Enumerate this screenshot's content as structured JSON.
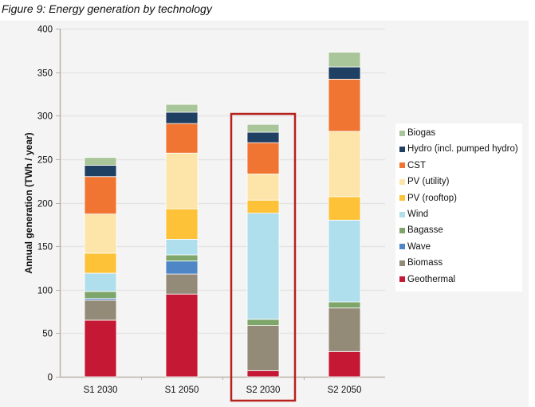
{
  "figure_title": "Figure 9: Energy generation by technology",
  "chart_data": {
    "type": "bar",
    "stacked": true,
    "title": "Figure 9: Energy generation by technology",
    "xlabel": "",
    "ylabel": "Annual generation (TWh / year)",
    "ylim": [
      0,
      400
    ],
    "yticks": [
      0,
      50,
      100,
      150,
      200,
      250,
      300,
      350,
      400
    ],
    "grid": true,
    "legend_position": "right",
    "categories": [
      "S1 2030",
      "S1 2050",
      "S2 2030",
      "S2 2050"
    ],
    "highlighted_category": "S2 2030",
    "highlight_color": "#b5221c",
    "series": [
      {
        "name": "Geothermal",
        "color": "#c41834",
        "values": [
          65,
          95,
          7,
          29
        ]
      },
      {
        "name": "Biomass",
        "color": "#948a78",
        "values": [
          23,
          23,
          52,
          50
        ]
      },
      {
        "name": "Wave",
        "color": "#4f87c6",
        "values": [
          2,
          15,
          0,
          0
        ]
      },
      {
        "name": "Bagasse",
        "color": "#7ea66a",
        "values": [
          8,
          7,
          7,
          7
        ]
      },
      {
        "name": "Wind",
        "color": "#afdeed",
        "values": [
          21,
          18,
          122,
          94
        ]
      },
      {
        "name": "PV (rooftop)",
        "color": "#fdc237",
        "values": [
          23,
          35,
          15,
          27
        ]
      },
      {
        "name": "PV (utility)",
        "color": "#fde4a8",
        "values": [
          45,
          64,
          30,
          75
        ]
      },
      {
        "name": "CST",
        "color": "#f07533",
        "values": [
          43,
          34,
          36,
          60
        ]
      },
      {
        "name": "Hydro (incl. pumped hydro)",
        "color": "#1f3f63",
        "values": [
          13,
          13,
          12,
          14
        ]
      },
      {
        "name": "Biogas",
        "color": "#a9c59a",
        "values": [
          9,
          9,
          9,
          17
        ]
      }
    ],
    "legend_order": [
      "Biogas",
      "Hydro (incl. pumped hydro)",
      "CST",
      "PV (utility)",
      "PV (rooftop)",
      "Wind",
      "Bagasse",
      "Wave",
      "Biomass",
      "Geothermal"
    ]
  }
}
